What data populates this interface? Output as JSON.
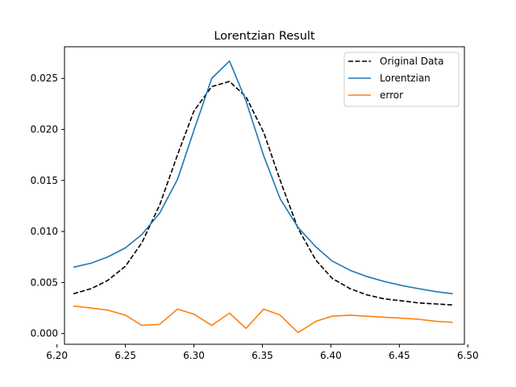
{
  "chart_data": {
    "type": "line",
    "title": "Lorentzian Result",
    "xlabel": "",
    "ylabel": "",
    "xlim": [
      6.2055,
      6.4975
    ],
    "ylim": [
      -0.00105,
      0.0281
    ],
    "xticks": [
      6.2,
      6.25,
      6.3,
      6.35,
      6.4,
      6.45,
      6.5
    ],
    "xtick_labels": [
      "6.20",
      "6.25",
      "6.30",
      "6.35",
      "6.40",
      "6.45",
      "6.50"
    ],
    "yticks": [
      0.0,
      0.005,
      0.01,
      0.015,
      0.02,
      0.025
    ],
    "ytick_labels": [
      "0.000",
      "0.005",
      "0.010",
      "0.015",
      "0.020",
      "0.025"
    ],
    "legend_position": "top-right",
    "grid": false,
    "x": [
      6.212,
      6.225,
      6.237,
      6.25,
      6.262,
      6.275,
      6.288,
      6.3,
      6.313,
      6.326,
      6.338,
      6.351,
      6.363,
      6.376,
      6.389,
      6.401,
      6.414,
      6.426,
      6.439,
      6.452,
      6.464,
      6.477,
      6.489
    ],
    "series": [
      {
        "name": "Original Data",
        "color": "#000000",
        "dash": "dashed",
        "values": [
          0.0039,
          0.0044,
          0.0052,
          0.0066,
          0.0089,
          0.0126,
          0.0175,
          0.0218,
          0.0242,
          0.0247,
          0.0232,
          0.0197,
          0.015,
          0.0103,
          0.0072,
          0.0054,
          0.0044,
          0.0038,
          0.0034,
          0.0032,
          0.003,
          0.0029,
          0.0028
        ]
      },
      {
        "name": "Lorentzian",
        "color": "#1f77b4",
        "dash": "solid",
        "values": [
          0.0065,
          0.0069,
          0.0075,
          0.0084,
          0.0097,
          0.0118,
          0.0151,
          0.0199,
          0.025,
          0.0267,
          0.0228,
          0.0174,
          0.0132,
          0.0104,
          0.0085,
          0.0071,
          0.0062,
          0.0056,
          0.0051,
          0.0047,
          0.0044,
          0.0041,
          0.0039
        ]
      },
      {
        "name": "error",
        "color": "#ff7f0e",
        "dash": "solid",
        "values": [
          0.0027,
          0.0025,
          0.0023,
          0.0018,
          0.0008,
          0.0009,
          0.0024,
          0.0019,
          0.0008,
          0.002,
          0.0005,
          0.0024,
          0.0018,
          0.0001,
          0.0012,
          0.0017,
          0.0018,
          0.0017,
          0.0016,
          0.0015,
          0.0014,
          0.0012,
          0.0011
        ]
      }
    ]
  }
}
